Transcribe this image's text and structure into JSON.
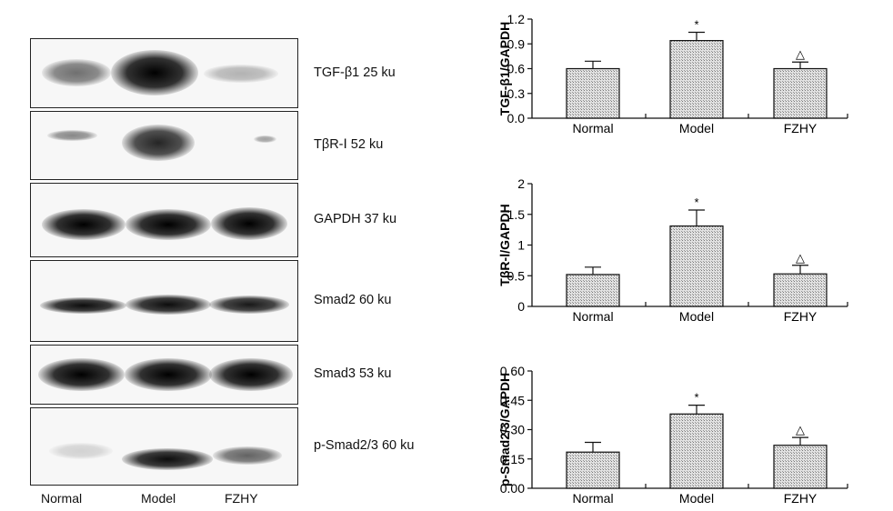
{
  "blots": [
    {
      "label": "TGF-β1 25 ku",
      "height": 77
    },
    {
      "label": "TβR-Ⅰ 52 ku",
      "height": 76
    },
    {
      "label": "GAPDH 37 ku",
      "height": 82
    },
    {
      "label": "Smad2 60 ku",
      "height": 90
    },
    {
      "label": "Smad3 53 ku",
      "height": 66
    },
    {
      "label": "p-Smad2/3 60 ku",
      "height": 86
    }
  ],
  "lanes": [
    "Normal",
    "Model",
    "FZHY"
  ],
  "chart_data": [
    {
      "type": "bar",
      "categories": [
        "Normal",
        "Model",
        "FZHY"
      ],
      "values": [
        0.6,
        0.94,
        0.6
      ],
      "errors": [
        0.09,
        0.1,
        0.08
      ],
      "markers": [
        "",
        "*",
        "△"
      ],
      "ylabel": "TGF-β1/GAPDH",
      "ylim": [
        0,
        1.2
      ],
      "yticks": [
        "0.0",
        "0.3",
        "0.6",
        "0.9",
        "1.2"
      ],
      "yticks_values": [
        0,
        0.3,
        0.6,
        0.9,
        1.2
      ]
    },
    {
      "type": "bar",
      "categories": [
        "Normal",
        "Model",
        "FZHY"
      ],
      "values": [
        0.52,
        1.31,
        0.53
      ],
      "errors": [
        0.12,
        0.26,
        0.14
      ],
      "markers": [
        "",
        "*",
        "△"
      ],
      "ylabel": "TβR-Ⅰ/GAPDH",
      "ylim": [
        0,
        2
      ],
      "yticks": [
        "0",
        "0.5",
        "1",
        "1.5",
        "2"
      ],
      "yticks_values": [
        0,
        0.5,
        1,
        1.5,
        2
      ]
    },
    {
      "type": "bar",
      "categories": [
        "Normal",
        "Model",
        "FZHY"
      ],
      "values": [
        0.185,
        0.38,
        0.22
      ],
      "errors": [
        0.05,
        0.045,
        0.04
      ],
      "markers": [
        "",
        "*",
        "△"
      ],
      "ylabel": "p-Smad2/3/GAPDH",
      "ylim": [
        0,
        0.6
      ],
      "yticks": [
        "0.00",
        "0.15",
        "0.30",
        "0.45",
        "0.60"
      ],
      "yticks_values": [
        0,
        0.15,
        0.3,
        0.45,
        0.6
      ]
    }
  ],
  "colors": {
    "bar_fill": "#c8c8c8",
    "axis": "#111111"
  }
}
